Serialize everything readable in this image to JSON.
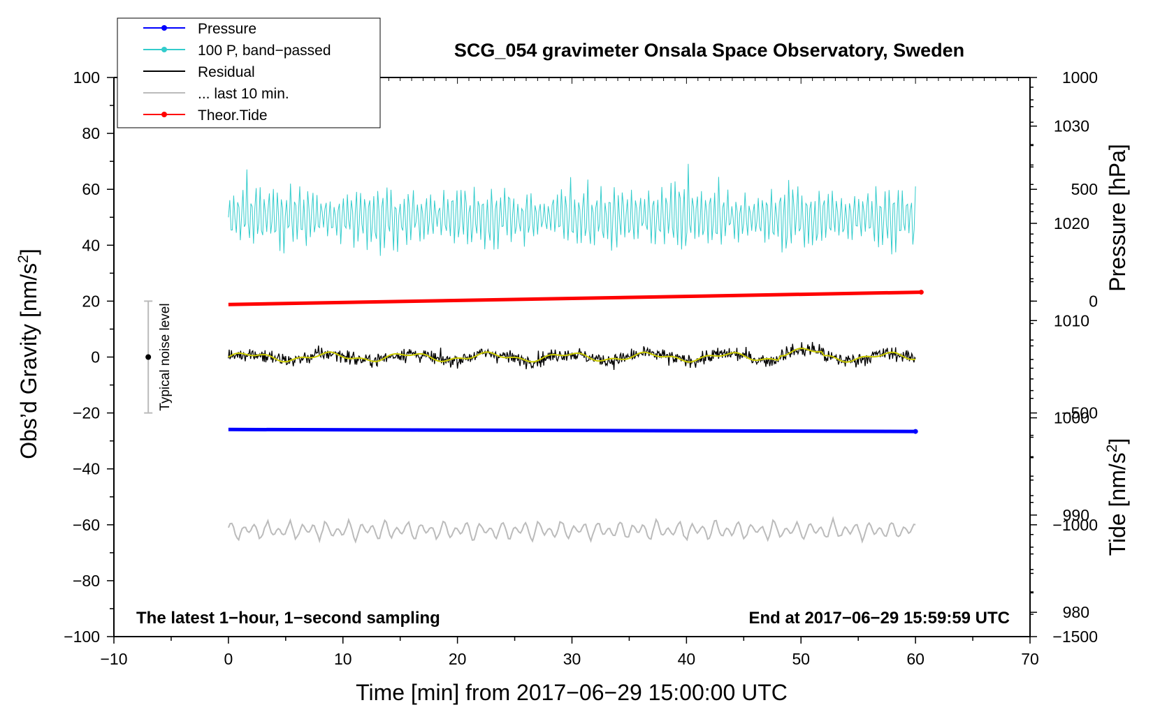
{
  "chart_data": {
    "type": "line",
    "title": "SCG_054 gravimeter Onsala Space Observatory, Sweden",
    "xlabel": "Time [min] from 2017−06−29 15:00:00 UTC",
    "ylabel_left": "Obs’d Gravity [nm/s",
    "ylabel_left_sup": "2",
    "ylabel_left_end": "]",
    "ylabel_right_pressure": "Pressure [hPa]",
    "ylabel_right_tide": "Tide [nm/s",
    "ylabel_right_tide_sup": "2",
    "ylabel_right_tide_end": "]",
    "xlim": [
      -10,
      70
    ],
    "ylim": [
      -100,
      100
    ],
    "pressure_lim": [
      977.5,
      1035
    ],
    "tide_lim": [
      -1500,
      1000
    ],
    "x_ticks": [
      "−10",
      "0",
      "10",
      "20",
      "30",
      "40",
      "50",
      "60",
      "70"
    ],
    "y_ticks": [
      "−100",
      "−80",
      "−60",
      "−40",
      "−20",
      "0",
      "20",
      "40",
      "60",
      "80",
      "100"
    ],
    "pressure_ticks": [
      "980",
      "990",
      "1000",
      "1010",
      "1020",
      "1030"
    ],
    "tide_ticks": [
      "−1500",
      "−1000",
      "−500",
      "0",
      "500",
      "1000"
    ],
    "note_left": "The latest 1−hour, 1−second sampling",
    "note_right": "End at 2017−06−29 15:59:59 UTC",
    "noise_label": "Typical noise level",
    "noise_bar": {
      "x": -7,
      "center": 0,
      "low": -20,
      "high": 20
    },
    "legend": [
      {
        "label": "Pressure",
        "color": "#0000ff",
        "marker": true
      },
      {
        "label": "100 P, band−passed",
        "color": "#33cccc",
        "marker": true
      },
      {
        "label": "Residual",
        "color": "#000000",
        "marker": false
      },
      {
        "label": "... last 10 min.",
        "color": "#bbbbbb",
        "marker": false
      },
      {
        "label": "Theor.Tide",
        "color": "#ff0000",
        "marker": true
      }
    ],
    "series": [
      {
        "name": "Pressure",
        "color": "#0000ff",
        "axis": "pressure",
        "x": [
          0,
          60
        ],
        "values": [
          998.8,
          998.6
        ],
        "style": "thick"
      },
      {
        "name": "100 P, band−passed",
        "color": "#33cccc",
        "axis": "gravity",
        "x_range": [
          0,
          60
        ],
        "baseline": 50,
        "amplitude": 13,
        "style": "noise"
      },
      {
        "name": "Residual",
        "color": "#000000",
        "axis": "gravity",
        "x_range": [
          0,
          60
        ],
        "baseline": 0,
        "amplitude": 3.5,
        "style": "noise"
      },
      {
        "name": "Residual smoothed",
        "color": "#cccc00",
        "axis": "gravity",
        "x_range": [
          0,
          60
        ],
        "baseline": 0,
        "amplitude": 1.2,
        "style": "smooth"
      },
      {
        "name": "... last 10 min.",
        "color": "#bbbbbb",
        "axis": "gravity",
        "x_range": [
          0,
          60
        ],
        "baseline": -62,
        "amplitude": 3,
        "style": "wavy"
      },
      {
        "name": "Theor.Tide",
        "color": "#ff0000",
        "axis": "tide",
        "x": [
          0,
          60.5
        ],
        "values": [
          -15,
          40
        ],
        "style": "thick"
      }
    ]
  }
}
